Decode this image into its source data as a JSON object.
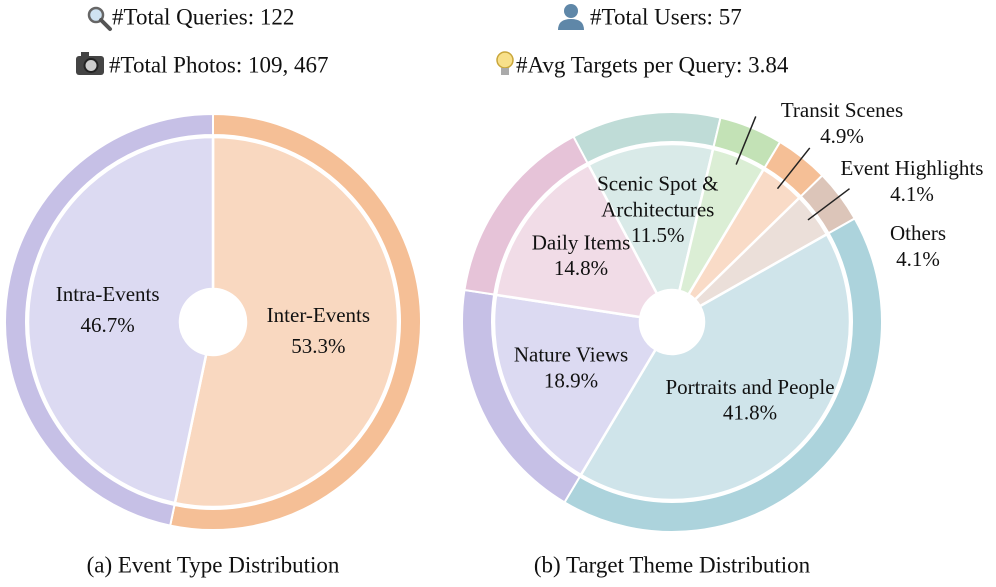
{
  "header": {
    "queries": "#Total Queries: 122",
    "photos": "#Total Photos: 109, 467",
    "users": "#Total Users:  57",
    "targets": "#Avg Targets per Query: 3.84"
  },
  "chart_data": [
    {
      "type": "pie",
      "caption": "(a) Event Type Distribution",
      "categories": [
        "Inter-Events",
        "Intra-Events"
      ],
      "values": [
        53.3,
        46.7
      ],
      "value_labels": [
        "53.3%",
        "46.7%"
      ],
      "colors": [
        "#f5bf96",
        "#c6c0e6"
      ],
      "inner_colors": [
        "#f9d8c0",
        "#dcdaf2"
      ]
    },
    {
      "type": "pie",
      "caption": "(b) Target Theme Distribution",
      "categories": [
        "Scenic Spot & Architectures",
        "Transit Scenes",
        "Event Highlights",
        "Others",
        "Portraits and People",
        "Nature Views",
        "Daily Items"
      ],
      "values": [
        11.5,
        4.9,
        4.1,
        4.1,
        41.8,
        18.9,
        14.8
      ],
      "value_labels": [
        "11.5%",
        "4.9%",
        "4.1%",
        "4.1%",
        "41.8%",
        "18.9%",
        "14.8%"
      ],
      "colors": [
        "#bfdcd7",
        "#c3e2b6",
        "#f5bf96",
        "#dcc5b9",
        "#acd3dc",
        "#c6c0e6",
        "#e6c3d8"
      ],
      "inner_colors": [
        "#d9eae8",
        "#dbeed5",
        "#f9dbc7",
        "#ebdfd9",
        "#cfe4ea",
        "#dcdaf2",
        "#f1dce7"
      ]
    }
  ]
}
